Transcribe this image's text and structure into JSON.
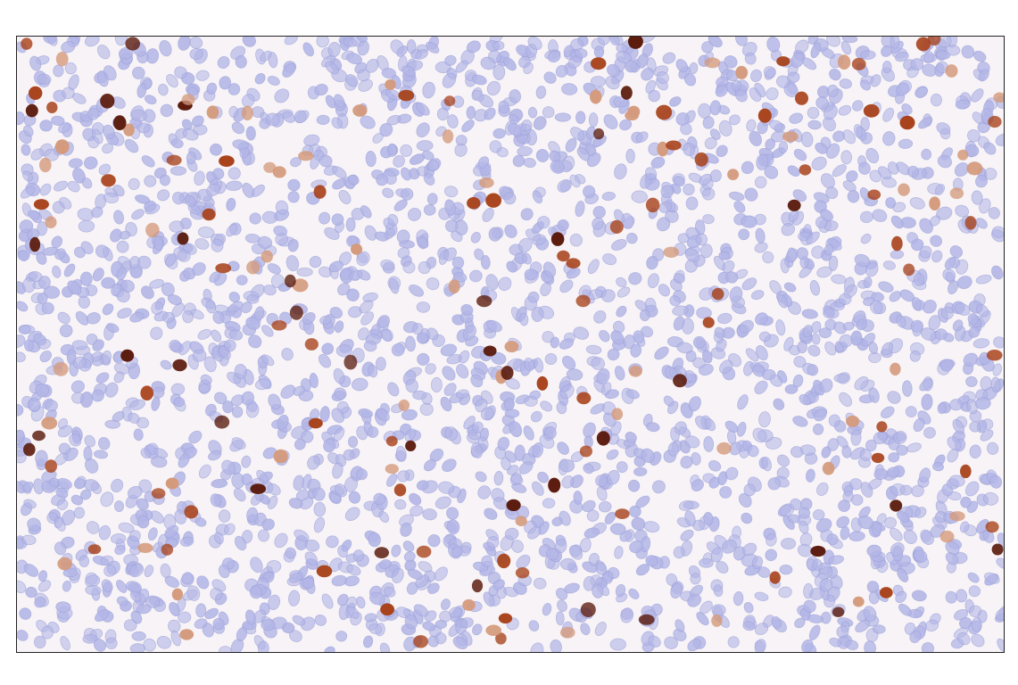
{
  "image": {
    "kind": "immunohistochemistry micrograph",
    "stain_colors": {
      "background": "#f7f3f6",
      "hematoxylin_nucleus": "#b3b6e6",
      "hematoxylin_edge": "#9a9ed8",
      "positive_strong": "#5a1a0c",
      "positive_medium": "#a8431c",
      "positive_weak": "#d49a7c"
    }
  }
}
